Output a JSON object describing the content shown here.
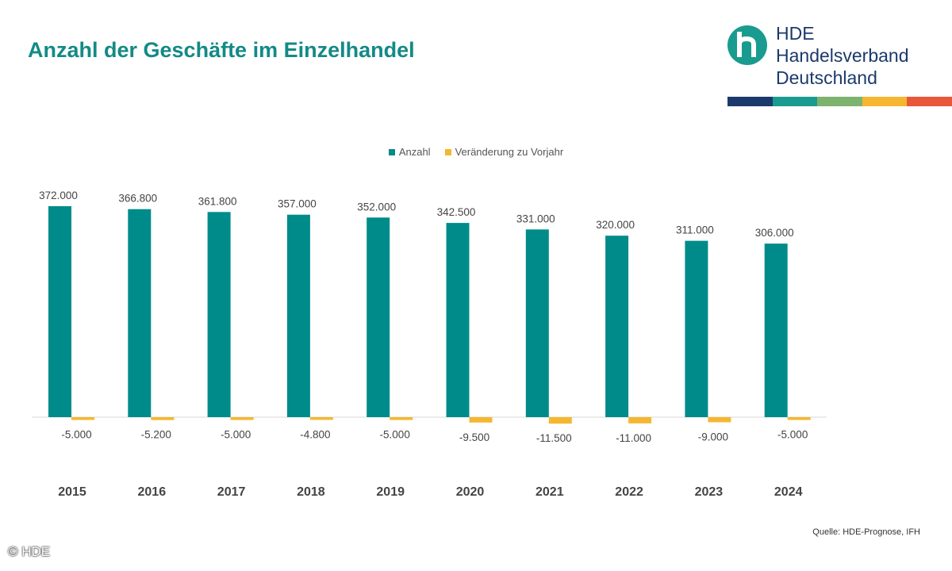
{
  "header": {
    "title": "Anzahl der Geschäfte im Einzelhandel"
  },
  "logo": {
    "line1": "HDE",
    "line2": "Handelsverband",
    "line3": "Deutschland",
    "mark_color": "#1a9b8f",
    "stripe_colors": [
      "#1b3a6b",
      "#1a9b8f",
      "#7db36f",
      "#f5b731",
      "#e8573a"
    ]
  },
  "chart_data": {
    "type": "bar",
    "title": "",
    "categories": [
      "2015",
      "2016",
      "2017",
      "2018",
      "2019",
      "2020",
      "2021",
      "2022",
      "2023",
      "2024"
    ],
    "series": [
      {
        "name": "Anzahl",
        "color": "#008b8b",
        "values": [
          372000,
          366800,
          361800,
          357000,
          352000,
          342500,
          331000,
          320000,
          311000,
          306000
        ],
        "labels": [
          "372.000",
          "366.800",
          "361.800",
          "357.000",
          "352.000",
          "342.500",
          "331.000",
          "320.000",
          "311.000",
          "306.000"
        ]
      },
      {
        "name": "Veränderung zu Vorjahr",
        "color": "#f5b731",
        "values": [
          -5000,
          -5200,
          -5000,
          -4800,
          -5000,
          -9500,
          -11500,
          -11000,
          -9000,
          -5000
        ],
        "labels": [
          "-5.000",
          "-5.200",
          "-5.000",
          "-4.800",
          "-5.000",
          "-9.500",
          "-11.500",
          "-11.000",
          "-9.000",
          "-5.000"
        ]
      }
    ],
    "legend_position": "top-center",
    "grid": false
  },
  "footer": {
    "source": "Quelle:  HDE-Prognose,  IFH",
    "copyright": "© HDE"
  }
}
